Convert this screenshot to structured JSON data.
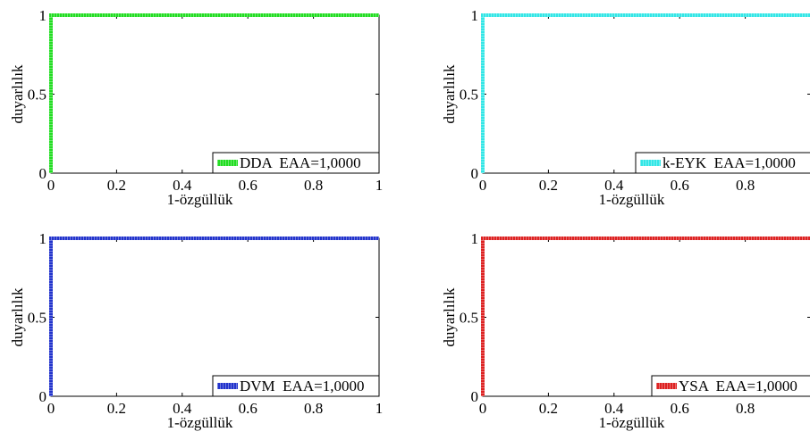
{
  "chart_data": [
    {
      "type": "line",
      "xlabel": "1-özgüllük",
      "ylabel": "duyarlılık",
      "xlim": [
        0,
        1
      ],
      "ylim": [
        0,
        1
      ],
      "xticks": [
        "0",
        "0.2",
        "0.4",
        "0.6",
        "0.8",
        "1"
      ],
      "yticks": [
        "0",
        "0.5",
        "1"
      ],
      "grid": false,
      "legend_position": "bottom-right",
      "series": [
        {
          "name": "DDA  EAA=1,0000",
          "color": "#22dd22",
          "x": [
            0,
            0,
            1
          ],
          "y": [
            0,
            1,
            1
          ]
        }
      ]
    },
    {
      "type": "line",
      "xlabel": "1-özgüllük",
      "ylabel": "duyarlılık",
      "xlim": [
        0,
        1
      ],
      "ylim": [
        0,
        1
      ],
      "xticks": [
        "0",
        "0.2",
        "0.4",
        "0.6",
        "0.8"
      ],
      "yticks": [
        "0",
        "0.5",
        "1"
      ],
      "grid": false,
      "legend_position": "bottom-right",
      "series": [
        {
          "name": "k-EYK  EAA=1,0000",
          "color": "#33e6e6",
          "x": [
            0,
            0,
            1
          ],
          "y": [
            0,
            1,
            1
          ]
        }
      ]
    },
    {
      "type": "line",
      "xlabel": "1-özgüllük",
      "ylabel": "duyarlılık",
      "xlim": [
        0,
        1
      ],
      "ylim": [
        0,
        1
      ],
      "xticks": [
        "0",
        "0.2",
        "0.4",
        "0.6",
        "0.8",
        "1"
      ],
      "yticks": [
        "0",
        "0.5",
        "1"
      ],
      "grid": false,
      "legend_position": "bottom-right",
      "series": [
        {
          "name": "DVM  EAA=1,0000",
          "color": "#2233cc",
          "x": [
            0,
            0,
            1
          ],
          "y": [
            0,
            1,
            1
          ]
        }
      ]
    },
    {
      "type": "line",
      "xlabel": "1-özgüllük",
      "ylabel": "duyarlılık",
      "xlim": [
        0,
        1
      ],
      "ylim": [
        0,
        1
      ],
      "xticks": [
        "0",
        "0.2",
        "0.4",
        "0.6",
        "0.8"
      ],
      "yticks": [
        "0",
        "0.5",
        "1"
      ],
      "grid": false,
      "legend_position": "bottom-right",
      "series": [
        {
          "name": "YSA  EAA=1,0000",
          "color": "#dd2222",
          "x": [
            0,
            0,
            1
          ],
          "y": [
            0,
            1,
            1
          ]
        }
      ]
    }
  ]
}
